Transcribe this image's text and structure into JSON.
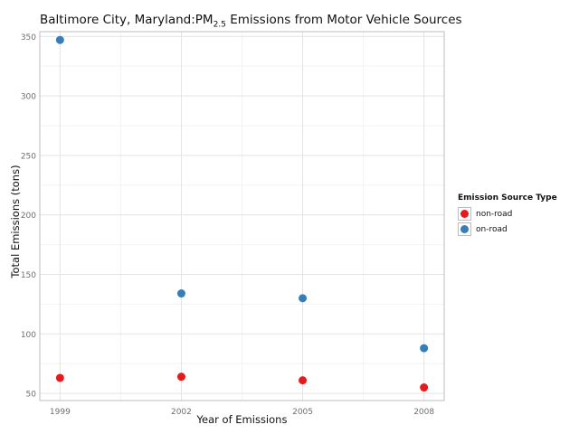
{
  "title_main": "Baltimore City, Maryland:PM",
  "title_sub": "2.5",
  "title_rest": " Emissions from Motor Vehicle Sources",
  "colors": {
    "non-road": "#E41A1C",
    "on-road": "#377EB8"
  },
  "chart_data": {
    "type": "scatter",
    "title": "Baltimore City, Maryland:PM2.5 Emissions from Motor Vehicle Sources",
    "xlabel": "Year of Emissions",
    "ylabel": "Total Emissions (tons)",
    "x": [
      1999,
      2002,
      2005,
      2008
    ],
    "xticks": [
      "1999",
      "2002",
      "2005",
      "2008"
    ],
    "yticks": [
      "50",
      "100",
      "150",
      "200",
      "250",
      "300",
      "350"
    ],
    "xlim": [
      1998.5,
      2008.5
    ],
    "ylim": [
      44,
      354
    ],
    "grid": true,
    "legend": {
      "title": "Emission Source Type",
      "position": "right"
    },
    "series": [
      {
        "name": "non-road",
        "values": [
          63,
          64,
          61,
          55
        ]
      },
      {
        "name": "on-road",
        "values": [
          347,
          134,
          130,
          88
        ]
      }
    ]
  }
}
